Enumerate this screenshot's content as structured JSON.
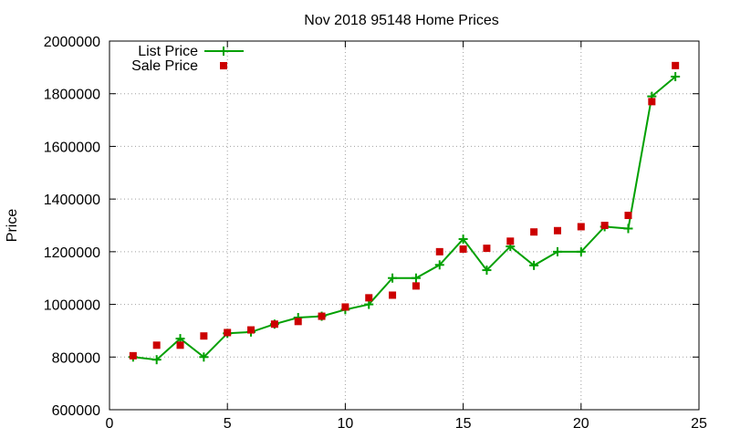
{
  "chart_data": {
    "type": "line",
    "title": "Nov 2018 95148 Home Prices",
    "xlabel": "",
    "ylabel": "Price",
    "xlim": [
      0,
      25
    ],
    "ylim": [
      600000,
      2000000
    ],
    "xticks": [
      0,
      5,
      10,
      15,
      20,
      25
    ],
    "yticks": [
      600000,
      800000,
      1000000,
      1200000,
      1400000,
      1600000,
      1800000,
      2000000
    ],
    "grid": true,
    "legend_position": "top-left",
    "series": [
      {
        "name": "List Price",
        "style": "line-with-plus-markers",
        "color": "#00a000",
        "x": [
          1,
          2,
          3,
          4,
          5,
          6,
          7,
          8,
          9,
          10,
          11,
          12,
          13,
          14,
          15,
          16,
          17,
          18,
          19,
          20,
          21,
          22,
          23,
          24
        ],
        "y": [
          800000,
          790000,
          870000,
          800000,
          890000,
          895000,
          925000,
          950000,
          955000,
          980000,
          1000000,
          1100000,
          1100000,
          1150000,
          1248000,
          1130000,
          1220000,
          1148000,
          1200000,
          1200000,
          1295000,
          1288000,
          1790000,
          1865000
        ]
      },
      {
        "name": "Sale Price",
        "style": "square-markers",
        "color": "#cc0000",
        "x": [
          1,
          2,
          3,
          4,
          5,
          6,
          7,
          8,
          9,
          10,
          11,
          12,
          13,
          14,
          15,
          16,
          17,
          18,
          19,
          20,
          21,
          22,
          23,
          24
        ],
        "y": [
          805000,
          845000,
          845000,
          880000,
          893000,
          903000,
          925000,
          935000,
          955000,
          990000,
          1025000,
          1035000,
          1070000,
          1200000,
          1210000,
          1213000,
          1240000,
          1275000,
          1280000,
          1295000,
          1300000,
          1338000,
          1770000,
          1907000
        ]
      }
    ]
  }
}
